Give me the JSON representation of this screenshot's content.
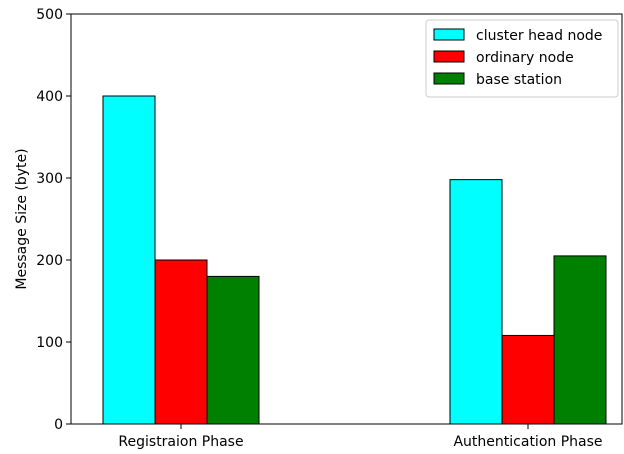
{
  "chart_data": {
    "type": "bar",
    "categories": [
      "Registraion Phase",
      "Authentication Phase"
    ],
    "series": [
      {
        "name": "cluster head node",
        "color": "#00ffff",
        "values": [
          400,
          298
        ]
      },
      {
        "name": "ordinary node",
        "color": "#ff0000",
        "values": [
          200,
          108
        ]
      },
      {
        "name": "base station",
        "color": "#008000",
        "values": [
          180,
          205
        ]
      }
    ],
    "title": "",
    "xlabel": "",
    "ylabel": "Message Size (byte)",
    "ylim": [
      0,
      500
    ],
    "yticks": [
      0,
      100,
      200,
      300,
      400,
      500
    ],
    "grid": false,
    "legend_position": "top-right"
  }
}
